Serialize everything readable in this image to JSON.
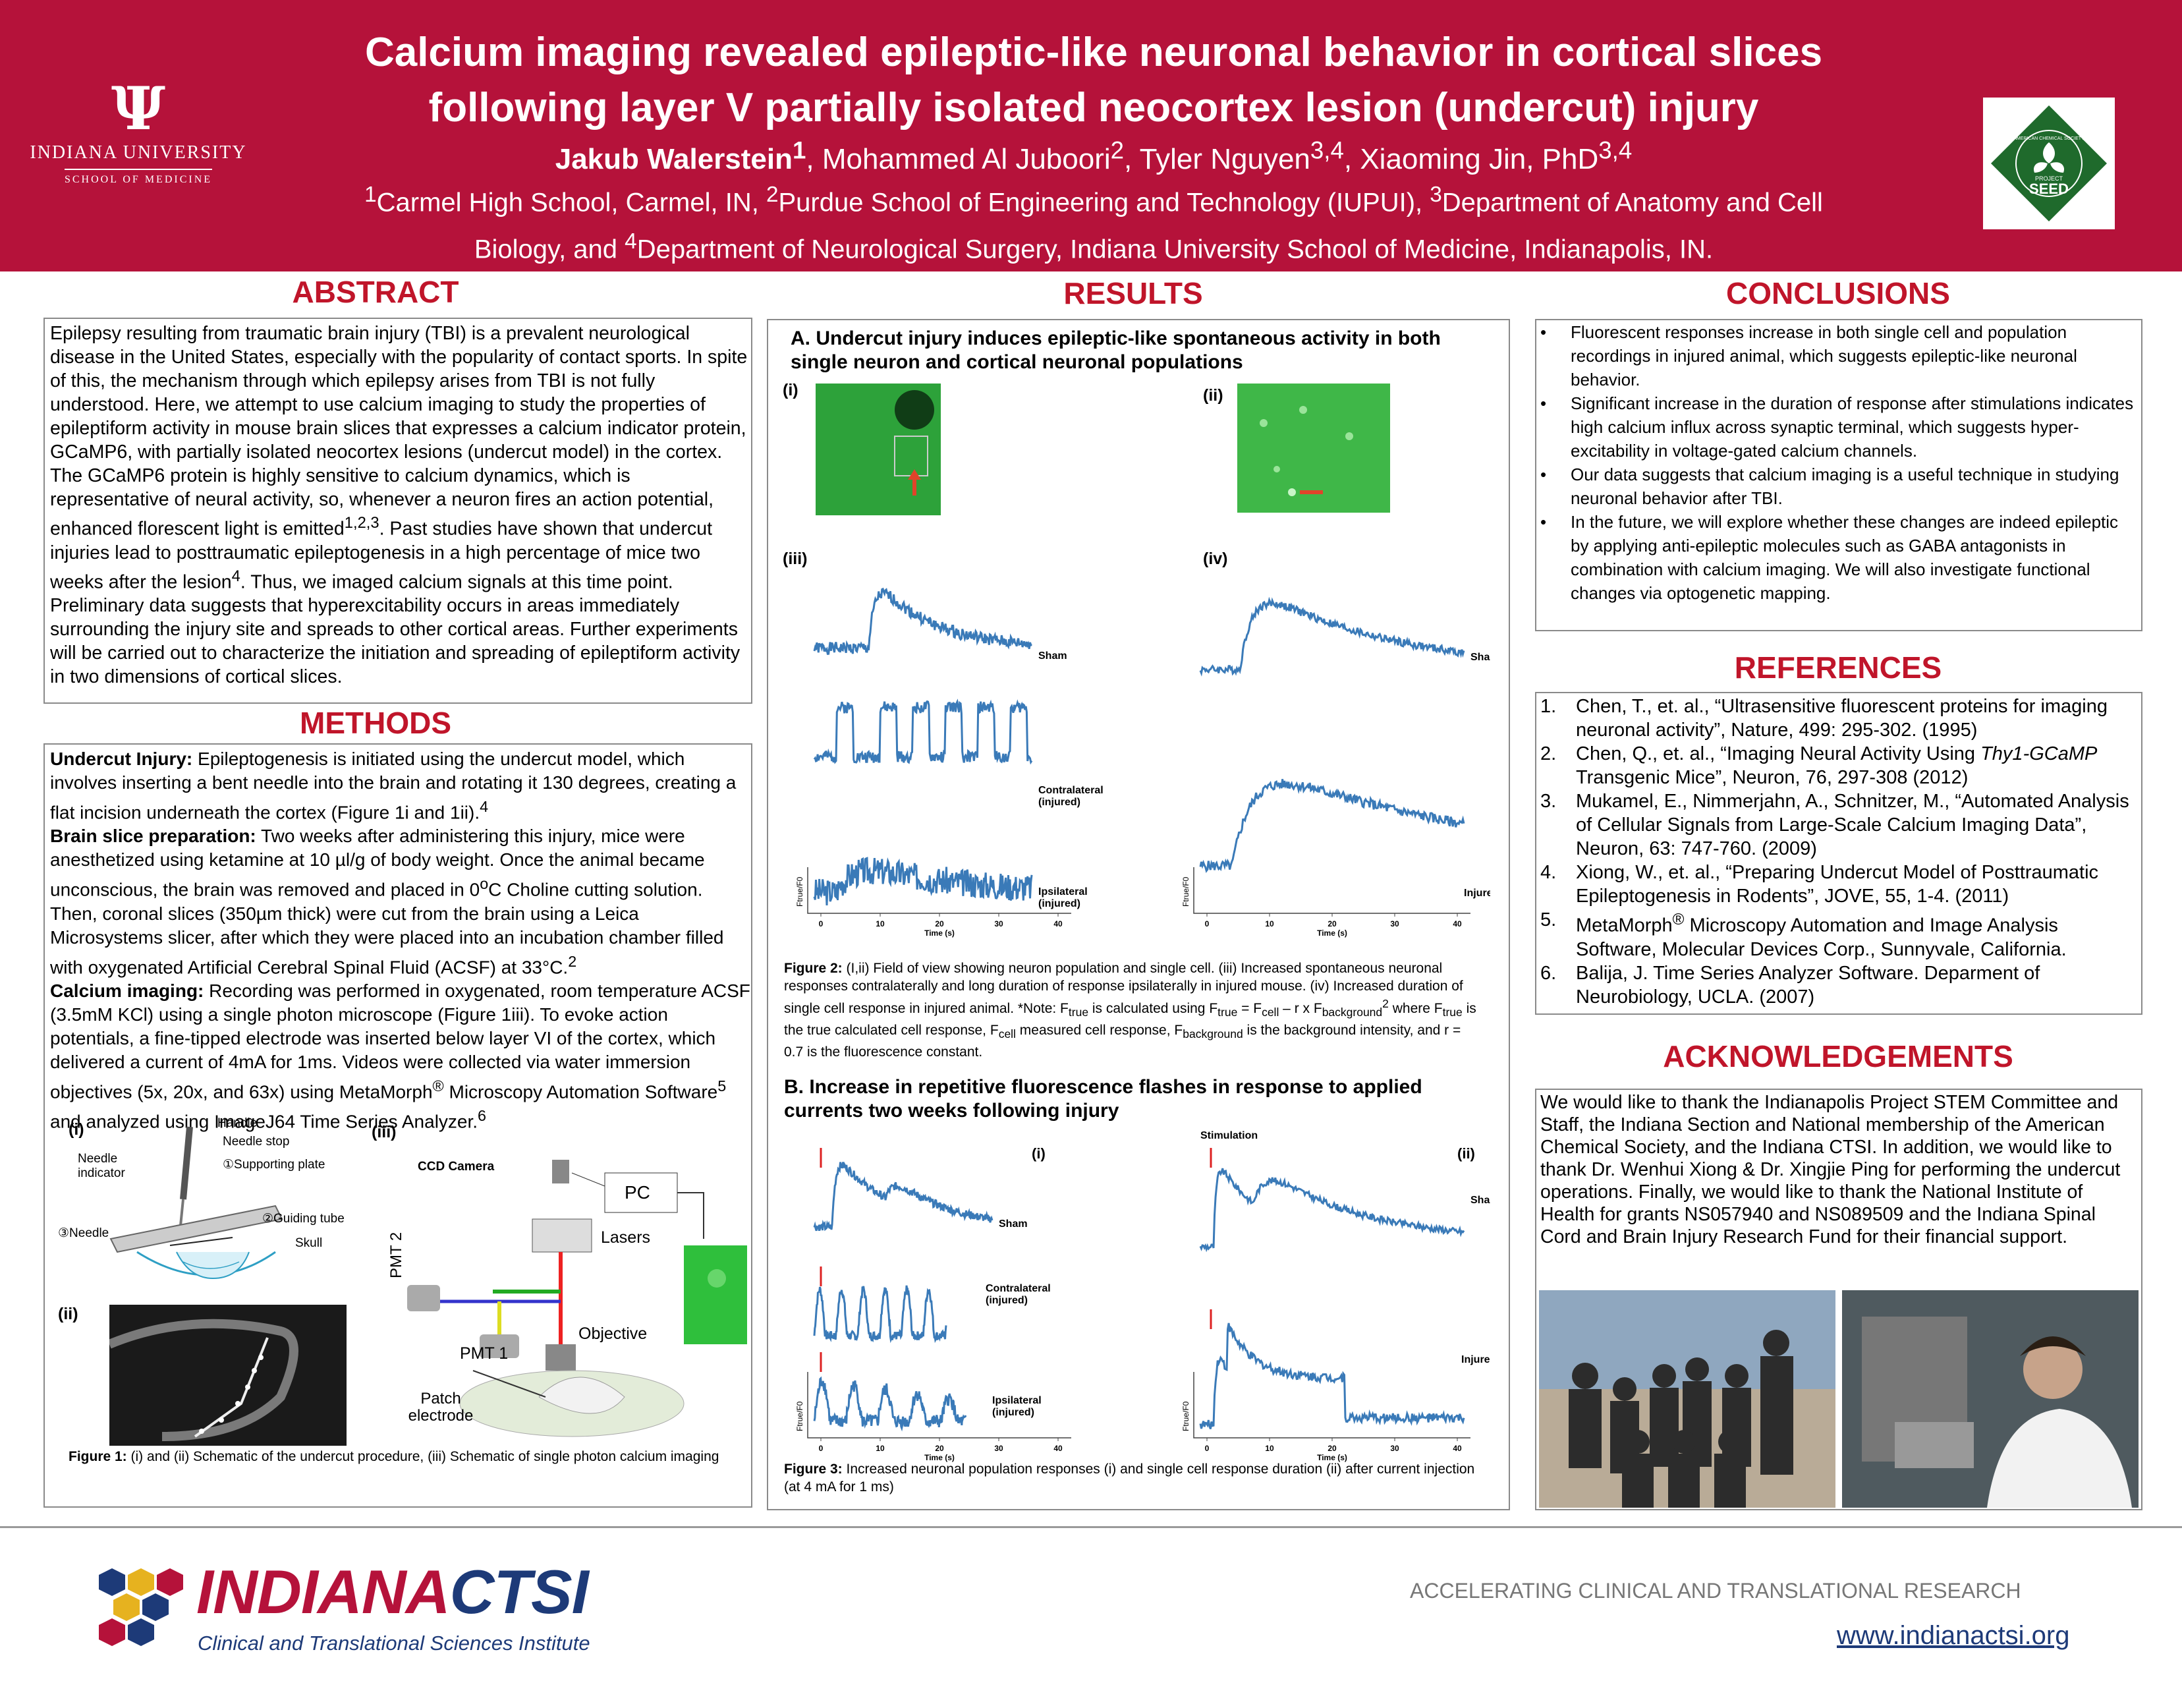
{
  "header": {
    "title_line1": "Calcium imaging revealed epileptic-like neuronal behavior in cortical slices",
    "title_line2": "following layer V partially isolated neocortex lesion (undercut) injury",
    "authors": [
      {
        "name": "Jakub Walerstein",
        "sup": "1"
      },
      {
        "name": "Mohammed Al Juboori",
        "sup": "2"
      },
      {
        "name": "Tyler Nguyen",
        "sup": "3,4"
      },
      {
        "name": "Xiaoming Jin, PhD",
        "sup": "3,4"
      }
    ],
    "affil_line1": "Carmel High School, Carmel, IN, ",
    "affil_line1b": "Purdue School of Engineering and Technology (IUPUI), ",
    "affil_line1c": "Department of Anatomy and Cell",
    "affil_line2a": "Biology, and ",
    "affil_line2b": "Department of Neurological Surgery, Indiana University School of Medicine, Indianapolis, IN.",
    "sup1": "1",
    "sup2": "2",
    "sup3": "3",
    "sup4": "4",
    "iu_name": "INDIANA UNIVERSITY",
    "iu_school": "SCHOOL OF MEDICINE",
    "seed_arc": "AMERICAN CHEMICAL SOCIETY",
    "seed_project": "PROJECT",
    "seed_word": "SEED"
  },
  "abstract": {
    "title": "ABSTRACT",
    "text_a": "Epilepsy resulting from traumatic brain injury (TBI) is a prevalent neurological disease in the United States, especially with the popularity of contact sports. In spite of this, the mechanism through which epilepsy arises from TBI is not fully understood. Here, we attempt to use calcium imaging to study the properties of epileptiform activity in mouse brain slices that expresses a calcium indicator protein, GCaMP6, with partially isolated neocortex lesions (undercut model) in the cortex. The GCaMP6 protein is highly sensitive to calcium dynamics, which is representative of neural activity, so, whenever a neuron fires an action potential, enhanced florescent light is emitted",
    "sup_a": "1,2,3",
    "text_b": ". Past studies have shown that undercut injuries lead to posttraumatic epileptogenesis in a high percentage of mice two weeks after the lesion",
    "sup_b": "4",
    "text_c": ". Thus, we imaged calcium signals at this time point. Preliminary data suggests that hyperexcitability occurs in areas immediately surrounding the injury site and spreads to other cortical areas. Further experiments will be carried out to characterize the initiation and spreading of epileptiform activity in two dimensions of cortical slices."
  },
  "methods": {
    "title": "METHODS",
    "p1_head": "Undercut Injury:",
    "p1": " Epileptogenesis is initiated using the undercut model, which involves inserting a bent needle into the brain and rotating it 130 degrees, creating a flat incision underneath the cortex (Figure 1i and 1ii).",
    "p1_sup": "4",
    "p2_head": "Brain slice preparation:",
    "p2a": " Two weeks after administering this injury, mice were anesthetized using ketamine at 10 µl/g of body weight. Once the animal became unconscious, the brain was removed and placed in 0",
    "p2_sup_o": "o",
    "p2b": "C Choline cutting solution. Then, coronal slices (350µm thick) were cut from the brain using a Leica Microsystems slicer, after which they were placed into an incubation chamber filled with oxygenated Artificial Cerebral Spinal Fluid (ACSF) at 33°C.",
    "p2_sup": "2",
    "p3_head": "Calcium imaging:",
    "p3a": " Recording was performed in oxygenated, room temperature ACSF (3.5mM KCl) using a single photon microscope (Figure 1iii). To evoke action potentials, a fine-tipped electrode was inserted below layer VI of the cortex, which delivered a current of 4mA for 1ms. Videos were collected via water immersion objectives (5x, 20x, and 63x) using MetaMorph",
    "p3_reg": "®",
    "p3b": " Microscopy Automation Software",
    "p3_sup5": "5",
    "p3c": " and analyzed using ImageJ64 Time Series Analyzer.",
    "p3_sup6": "6",
    "fig_labels": {
      "i": "(i)",
      "ii": "(ii)",
      "iii": "(iii)"
    },
    "schematic_labels": {
      "handle": "Handle",
      "needle_stop": "Needle stop",
      "needle_indicator": "Needle indicator",
      "supporting_plate": "①Supporting plate",
      "guiding_tube": "②Guiding tube",
      "needle": "③Needle",
      "skull": "Skull",
      "ccd": "CCD Camera",
      "pc": "PC",
      "lasers": "Lasers",
      "pmt2": "PMT 2",
      "pmt1": "PMT 1",
      "objective": "Objective",
      "patch": "Patch electrode"
    },
    "fig_caption_head": "Figure 1:",
    "fig_caption": " (i) and (ii) Schematic of the undercut procedure, (iii) Schematic of single photon calcium imaging"
  },
  "results": {
    "title": "RESULTS",
    "a_title": "A. Undercut injury induces epileptic-like spontaneous activity in both single neuron and cortical neuronal populations",
    "panel_i": "(i)",
    "panel_ii": "(ii)",
    "panel_iii": "(iii)",
    "panel_iv": "(iv)",
    "labels_a_iii": [
      "Sham",
      "Contralateral (injured)",
      "Ipsilateral (injured)"
    ],
    "labels_a_iv": [
      "Sham",
      "Injured"
    ],
    "ticks": [
      "0",
      "10",
      "20",
      "30",
      "40"
    ],
    "xlabel": "Time (s)",
    "ylabel": "Ftrue/F0",
    "fig2_head": "Figure 2:",
    "fig2_text": " (I,ii) Field of view showing neuron population and single cell. (iii) Increased spontaneous neuronal responses contralaterally and long duration of response ipsilaterally in injured mouse. (iv) Increased duration of single cell response in injured animal. *Note: F",
    "fig2_true": "true",
    "fig2_b": " is calculated using F",
    "fig2_c": " = F",
    "fig2_cell": "cell",
    "fig2_d": " – r x F",
    "fig2_bg": "background",
    "fig2_e": " where F",
    "fig2_f": " is the true calculated cell response, F",
    "fig2_g": " measured cell response, F",
    "fig2_h": " is the background intensity, and r = 0.7 is the fluorescence constant.",
    "fig2_sup2": "2",
    "b_title": "B. Increase in repetitive fluorescence flashes in response to applied currents two weeks following injury",
    "stimulation": "Stimulation",
    "labels_b_i": [
      "Sham",
      "Contralateral (injured)",
      "Ipsilateral (injured)"
    ],
    "labels_b_ii": [
      "Sham",
      "Injured"
    ],
    "fig3_head": "Figure 3:",
    "fig3_text": " Increased neuronal population responses (i) and single cell response duration (ii) after current injection (at 4 mA for 1 ms)"
  },
  "conclusions": {
    "title": "CONCLUSIONS",
    "items": [
      "Fluorescent responses increase in both single cell and population recordings in injured animal, which suggests epileptic-like neuronal behavior.",
      "Significant increase in the duration of response after stimulations indicates high calcium influx across synaptic terminal, which suggests hyper- excitability in voltage-gated calcium channels.",
      "Our data suggests that calcium imaging is a useful technique in studying neuronal behavior after TBI.",
      "In the future, we will explore whether these changes are indeed epileptic by applying anti-epileptic molecules such as GABA antagonists in combination with calcium imaging. We will also investigate functional changes via optogenetic mapping."
    ]
  },
  "references": {
    "title": "REFERENCES",
    "items": [
      {
        "num": "1.",
        "text": "Chen, T., et. al., “Ultrasensitive fluorescent proteins for imaging neuronal activity”, Nature, 499: 295-302. (1995)"
      },
      {
        "num": "2.",
        "text_a": "Chen, Q., et. al., “Imaging Neural Activity Using ",
        "italic": "Thy1-GCaMP",
        "text_b": " Transgenic Mice”, Neuron, 76, 297-308 (2012)"
      },
      {
        "num": "3.",
        "text": "Mukamel, E., Nimmerjahn, A., Schnitzer, M., “Automated Analysis of Cellular Signals from Large-Scale Calcium Imaging Data”, Neuron, 63: 747-760. (2009)"
      },
      {
        "num": "4.",
        "text": "Xiong, W., et. al., “Preparing Undercut Model of Posttraumatic Epileptogenesis in Rodents”, JOVE, 55, 1-4. (2011)"
      },
      {
        "num": "5.",
        "text_a": "MetaMorph",
        "reg": "®",
        "text_b": " Microscopy Automation and Image Analysis Software, Molecular Devices Corp., Sunnyvale, California."
      },
      {
        "num": "6.",
        "text": "Balija, J. Time Series Analyzer Software. Deparment of Neurobiology, UCLA. (2007)"
      }
    ]
  },
  "acknowledgements": {
    "title": "ACKNOWLEDGEMENTS",
    "text": "We would like to thank the Indianapolis Project STEM Committee and Staff, the Indiana Section and National membership of the American Chemical Society, and the Indiana CTSI. In addition, we would like to thank Dr. Wenhui Xiong & Dr. Xingjie Ping for performing the undercut operations. Finally, we would like to thank the National Institute of Health for grants NS057940 and NS089509 and the Indiana Spinal Cord and Brain Injury Research Fund for their financial support."
  },
  "footer": {
    "ctsi_a": "INDIANA",
    "ctsi_b": "CTSI",
    "ctsi_sub": "Clinical and Translational Sciences Institute",
    "tagline": "ACCELERATING CLINICAL AND TRANSLATIONAL RESEARCH",
    "url": "www.indianactsi.org"
  },
  "colors": {
    "banner": "#b5123a",
    "section_title": "#c0152a",
    "trace": "#3a7ab8",
    "fluor": "#33b24a"
  }
}
